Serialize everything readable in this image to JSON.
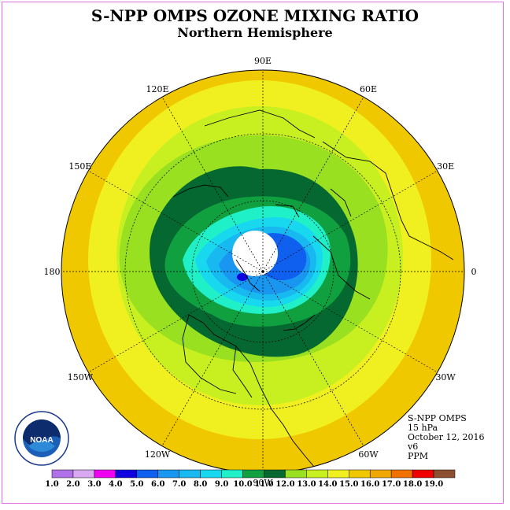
{
  "title": "S-NPP OMPS OZONE MIXING RATIO",
  "subtitle": "Northern Hemisphere",
  "longitude_labels": [
    {
      "text": "90E",
      "deg": 90
    },
    {
      "text": "60E",
      "deg": 60
    },
    {
      "text": "30E",
      "deg": 30
    },
    {
      "text": "0",
      "deg": 0
    },
    {
      "text": "30W",
      "deg": -30
    },
    {
      "text": "60W",
      "deg": -60
    },
    {
      "text": "90W",
      "deg": -90
    },
    {
      "text": "120W",
      "deg": -120
    },
    {
      "text": "150W",
      "deg": -150
    },
    {
      "text": "180",
      "deg": 180
    },
    {
      "text": "150E",
      "deg": 150
    },
    {
      "text": "120E",
      "deg": 120
    }
  ],
  "info": {
    "instrument": "S-NPP OMPS",
    "level": "15 hPa",
    "date": "October 12, 2016",
    "version": "v6",
    "units": "PPM"
  },
  "logo_text": "NOAA",
  "colorbar": {
    "ticks": [
      "1.0",
      "2.0",
      "3.0",
      "4.0",
      "5.0",
      "6.0",
      "7.0",
      "8.0",
      "9.0",
      "10.0",
      "11.0",
      "12.0",
      "13.0",
      "14.0",
      "15.0",
      "16.0",
      "17.0",
      "18.0",
      "19.0"
    ],
    "colors": [
      "#b46be0",
      "#d9a3f0",
      "#f000f0",
      "#1a00d8",
      "#1060f0",
      "#1a96f0",
      "#12b8f0",
      "#20d8f0",
      "#20f0c8",
      "#13a040",
      "#047838",
      "#0a5a30",
      "#98e020",
      "#c8f020",
      "#f0f020",
      "#f0d000",
      "#f0b000",
      "#f08c00",
      "#f05000",
      "#f00000",
      "#8c5030"
    ],
    "shown_colors": [
      "#b070e8",
      "#d9a8f0",
      "#f000f0",
      "#1000e0",
      "#1060f0",
      "#1896f0",
      "#18b8f0",
      "#18d8f0",
      "#20f0c8",
      "#10a040",
      "#046830",
      "#98e020",
      "#c8f020",
      "#f0f020",
      "#f0c800",
      "#f0a800",
      "#f07000",
      "#f00000",
      "#8c5030"
    ]
  },
  "map_data": {
    "projection": "north polar stereographic",
    "field": "ozone mixing ratio (ppm) at 15 hPa",
    "contour_levels_ppm": [
      4.0,
      5.0,
      6.0,
      7.0,
      8.0,
      9.0,
      10.0,
      11.0,
      12.0,
      13.0,
      14.0,
      15.0
    ],
    "fill_colors": [
      "#1060f0",
      "#1896f0",
      "#18b8f0",
      "#18d8f0",
      "#20f0c8",
      "#10a040",
      "#046830",
      "#98e020",
      "#c8f020",
      "#f0f020",
      "#f0c800"
    ]
  }
}
